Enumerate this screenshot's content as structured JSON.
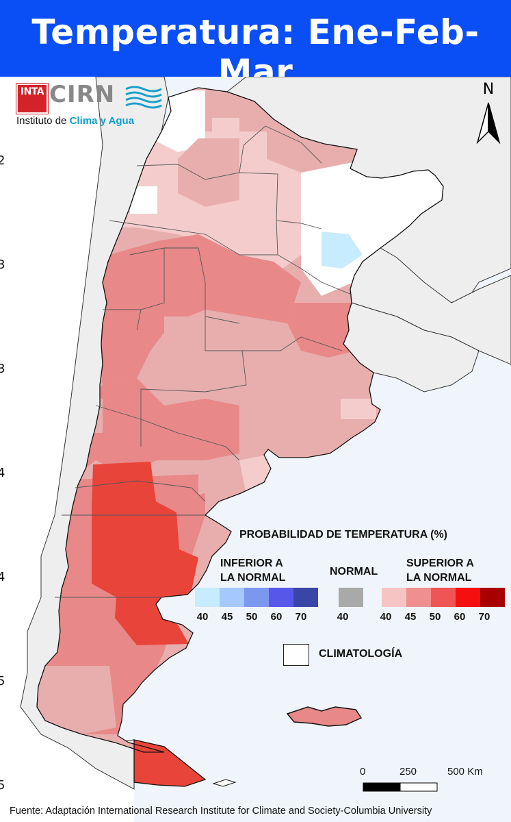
{
  "header": {
    "title": "Temperatura: Ene-Feb-Mar"
  },
  "logo": {
    "badge": "INTA",
    "name": "CIRN",
    "subtitle_prefix": "Instituto de",
    "subtitle_highlight": "Clima y Agua"
  },
  "north_arrow": {
    "label": "N"
  },
  "legend": {
    "title": "PROBABILIDAD DE TEMPERATURA (%)",
    "below": {
      "label_line1": "INFERIOR A",
      "label_line2": "LA NORMAL",
      "values": [
        "40",
        "45",
        "50",
        "60",
        "70"
      ],
      "colors": [
        "#c7ebff",
        "#a5c8ff",
        "#7c97ef",
        "#5757ea",
        "#3a45a8"
      ]
    },
    "normal": {
      "label": "NORMAL",
      "value": "40",
      "color": "#a9a9a9"
    },
    "above": {
      "label_line1": "SUPERIOR A",
      "label_line2": "LA NORMAL",
      "values": [
        "40",
        "45",
        "50",
        "60",
        "70"
      ],
      "colors": [
        "#f7c4c4",
        "#ef8f8f",
        "#ef5555",
        "#f50f0f",
        "#a80000"
      ]
    },
    "climatology_label": "CLIMATOLOGÍA"
  },
  "scale_bar": {
    "labels": [
      "0",
      "250",
      "500 Km"
    ]
  },
  "footer": "Fuente: Adaptación International Research Institute for Climate and Society-Columbia University",
  "map_colors": {
    "ocean": "#f0f5fb",
    "neighbor_land": "#eeeeee",
    "prob_40_45": "#e8aeae",
    "prob_45_50": "#e88888",
    "prob_50_60": "#e8443a",
    "prob_light": "#f5cccc",
    "below_40": "#c7ebff",
    "climatology": "#ffffff"
  }
}
